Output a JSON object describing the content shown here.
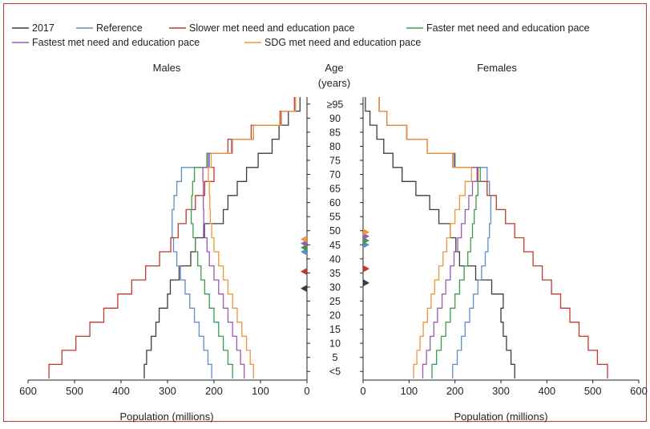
{
  "figure": {
    "panel_titles": {
      "males": "Males",
      "females": "Females"
    },
    "center_axis": {
      "title_line1": "Age",
      "title_line2": "(years)"
    },
    "legend": [
      {
        "key": "2017",
        "label": "2017",
        "color": "#3c3c3c"
      },
      {
        "key": "reference",
        "label": "Reference",
        "color": "#5b8fc9"
      },
      {
        "key": "slower",
        "label": "Slower met need and education pace",
        "color": "#c0392b"
      },
      {
        "key": "faster",
        "label": "Faster met need and education pace",
        "color": "#3e9a4a"
      },
      {
        "key": "fastest",
        "label": "Fastest met need and education pace",
        "color": "#9b59b6"
      },
      {
        "key": "sdg",
        "label": "SDG met need and education pace",
        "color": "#f0953a"
      }
    ],
    "border_color": "#c0392b"
  },
  "chart_data": {
    "type": "line",
    "chart_subtype": "population pyramid (step lines)",
    "age_groups": [
      "<5",
      "5",
      "10",
      "15",
      "20",
      "25",
      "30",
      "35",
      "40",
      "45",
      "50",
      "55",
      "60",
      "65",
      "70",
      "75",
      "80",
      "85",
      "90",
      "≥95"
    ],
    "x_ticks": [
      600,
      500,
      400,
      300,
      200,
      100,
      0
    ],
    "x_range_millions": [
      0,
      600
    ],
    "xlabel_left": "Population (millions)",
    "xlabel_right": "Population (millions)",
    "males": [
      {
        "name": "2017",
        "values": [
          350,
          345,
          335,
          325,
          318,
          300,
          294,
          275,
          250,
          240,
          222,
          180,
          170,
          150,
          130,
          105,
          75,
          60,
          40,
          15
        ]
      },
      {
        "name": "Reference",
        "values": [
          205,
          213,
          222,
          232,
          242,
          252,
          262,
          272,
          280,
          287,
          290,
          290,
          286,
          280,
          270,
          210,
          162,
          115,
          55,
          25
        ]
      },
      {
        "name": "Slower met need and education pace",
        "values": [
          555,
          527,
          497,
          467,
          437,
          407,
          377,
          347,
          317,
          293,
          277,
          260,
          240,
          220,
          200,
          215,
          170,
          120,
          58,
          27
        ]
      },
      {
        "name": "Faster met need and education pace",
        "values": [
          160,
          170,
          180,
          190,
          200,
          210,
          220,
          228,
          235,
          240,
          245,
          249,
          248,
          246,
          242,
          215,
          162,
          115,
          55,
          25
        ]
      },
      {
        "name": "Fastest met need and education pace",
        "values": [
          135,
          143,
          151,
          160,
          170,
          180,
          190,
          200,
          210,
          215,
          220,
          222,
          223,
          223,
          224,
          212,
          162,
          115,
          55,
          25
        ]
      },
      {
        "name": "SDG met need and education pace",
        "values": [
          115,
          122,
          130,
          140,
          150,
          160,
          170,
          180,
          190,
          200,
          205,
          208,
          209,
          210,
          212,
          206,
          160,
          115,
          55,
          25
        ]
      }
    ],
    "females": [
      {
        "name": "2017",
        "values": [
          330,
          322,
          312,
          305,
          300,
          305,
          280,
          245,
          210,
          202,
          190,
          165,
          145,
          115,
          85,
          65,
          45,
          30,
          15,
          5
        ]
      },
      {
        "name": "Reference",
        "values": [
          195,
          205,
          214,
          222,
          232,
          240,
          250,
          258,
          266,
          272,
          275,
          278,
          278,
          275,
          270,
          200,
          140,
          95,
          52,
          35
        ]
      },
      {
        "name": "Slower met need and education pace",
        "values": [
          532,
          510,
          490,
          470,
          450,
          430,
          410,
          390,
          370,
          350,
          330,
          310,
          290,
          270,
          250,
          195,
          140,
          95,
          52,
          35
        ]
      },
      {
        "name": "Faster met need and education pace",
        "values": [
          150,
          160,
          170,
          180,
          190,
          200,
          210,
          220,
          228,
          234,
          238,
          242,
          246,
          250,
          255,
          200,
          140,
          95,
          52,
          35
        ]
      },
      {
        "name": "Fastest met need and education pace",
        "values": [
          130,
          138,
          146,
          154,
          162,
          172,
          180,
          190,
          198,
          206,
          214,
          222,
          230,
          238,
          248,
          198,
          140,
          95,
          52,
          35
        ]
      },
      {
        "name": "SDG met need and education pace",
        "values": [
          110,
          117,
          124,
          131,
          140,
          148,
          156,
          165,
          174,
          182,
          190,
          200,
          210,
          222,
          236,
          195,
          140,
          95,
          52,
          35
        ]
      }
    ],
    "markers": {
      "males": [
        {
          "series": "2017",
          "age": 32
        },
        {
          "series": "Slower met need and education pace",
          "age": 38
        },
        {
          "series": "Reference",
          "age": 45
        },
        {
          "series": "Faster met need and education pace",
          "age": 46.5
        },
        {
          "series": "Fastest met need and education pace",
          "age": 48
        },
        {
          "series": "SDG met need and education pace",
          "age": 49.5
        }
      ],
      "females": [
        {
          "series": "2017",
          "age": 34
        },
        {
          "series": "Slower met need and education pace",
          "age": 39
        },
        {
          "series": "Reference",
          "age": 47.5
        },
        {
          "series": "Faster met need and education pace",
          "age": 49
        },
        {
          "series": "Fastest met need and education pace",
          "age": 50.5
        },
        {
          "series": "SDG met need and education pace",
          "age": 52
        }
      ]
    }
  }
}
